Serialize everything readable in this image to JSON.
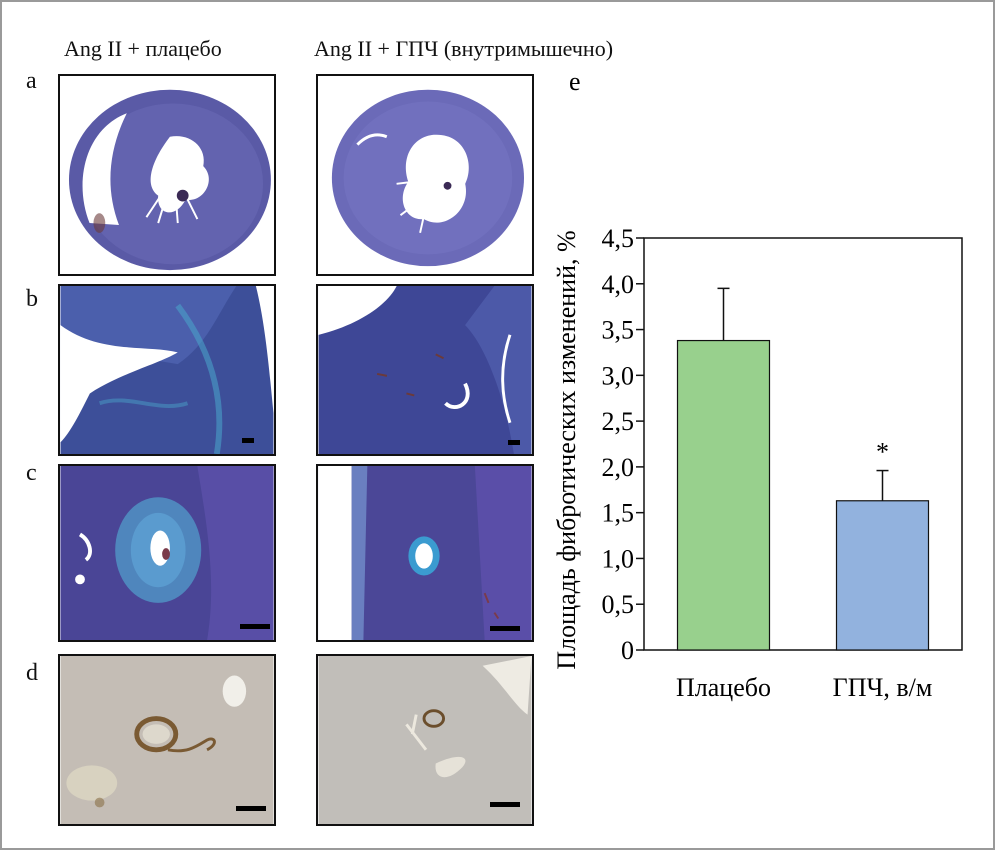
{
  "figure": {
    "col_left_title": "Ang II + плацебо",
    "col_right_title": "Ang II + ГПЧ (внутримышечно)",
    "row_labels": [
      "a",
      "b",
      "c",
      "d"
    ],
    "chart_panel_label": "e"
  },
  "chart_data": {
    "type": "bar",
    "categories": [
      "Плацебо",
      "ГПЧ, в/м"
    ],
    "values": [
      3.38,
      1.63
    ],
    "errors": [
      0.57,
      0.33
    ],
    "annotations": [
      "",
      "*"
    ],
    "ylabel": "Площадь фибротических изменений, %",
    "xlabel": "",
    "ylim": [
      0,
      4.5
    ],
    "yticks": [
      "0",
      "0,5",
      "1,0",
      "1,5",
      "2,0",
      "2,5",
      "3,0",
      "3,5",
      "4,0",
      "4,5"
    ],
    "colors": [
      "#98d08d",
      "#92b2de"
    ],
    "grid": false
  }
}
